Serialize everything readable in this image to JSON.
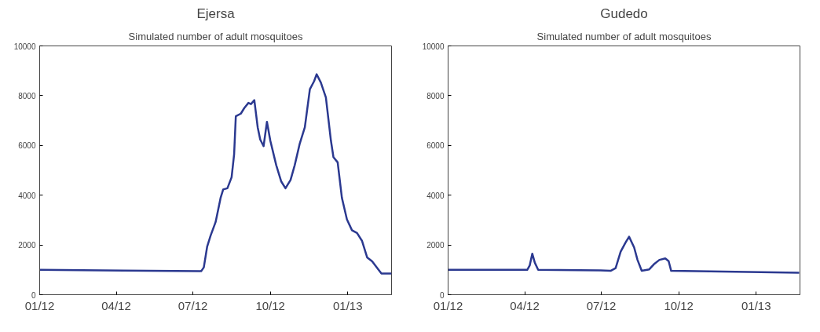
{
  "chart_data": [
    {
      "type": "line",
      "title": "Ejersa",
      "subtitle": "Simulated number of adult mosquitoes",
      "x": [
        "2012-01-01",
        "2012-04-10",
        "2012-07-11",
        "2012-07-14",
        "2012-07-18",
        "2012-07-22",
        "2012-07-28",
        "2012-08-03",
        "2012-08-06",
        "2012-08-11",
        "2012-08-16",
        "2012-08-19",
        "2012-08-21",
        "2012-08-27",
        "2012-08-31",
        "2012-09-05",
        "2012-09-08",
        "2012-09-12",
        "2012-09-16",
        "2012-09-19",
        "2012-09-23",
        "2012-09-27",
        "2012-10-01",
        "2012-10-08",
        "2012-10-14",
        "2012-10-19",
        "2012-10-25",
        "2012-10-30",
        "2012-11-05",
        "2012-11-11",
        "2012-11-17",
        "2012-11-22",
        "2012-11-25",
        "2012-11-30",
        "2012-12-06",
        "2012-12-12",
        "2012-12-15",
        "2012-12-20",
        "2012-12-25",
        "2012-12-31",
        "2013-01-06",
        "2013-01-12",
        "2013-01-18",
        "2013-01-24",
        "2013-01-30",
        "2013-02-05",
        "2013-02-10",
        "2013-02-22"
      ],
      "series": [
        {
          "color": "#2b3990",
          "values": [
            1000,
            970,
            950,
            1100,
            1940,
            2370,
            2920,
            3900,
            4230,
            4280,
            4720,
            5640,
            7170,
            7280,
            7500,
            7710,
            7660,
            7820,
            6730,
            6240,
            5970,
            6950,
            6190,
            5210,
            4550,
            4280,
            4610,
            5210,
            6080,
            6730,
            8260,
            8580,
            8860,
            8530,
            7930,
            6190,
            5530,
            5320,
            3900,
            3030,
            2590,
            2480,
            2160,
            1500,
            1340,
            1070,
            850,
            850
          ]
        }
      ],
      "xlim": [
        "2012-01-01",
        "2013-02-22"
      ],
      "xticks": [
        {
          "value": "2012-01-01",
          "label": "01/12"
        },
        {
          "value": "2012-04-01",
          "label": "04/12"
        },
        {
          "value": "2012-07-01",
          "label": "07/12"
        },
        {
          "value": "2012-10-01",
          "label": "10/12"
        },
        {
          "value": "2013-01-01",
          "label": "01/13"
        }
      ],
      "ylim": [
        0,
        10000
      ],
      "yticks": [
        0,
        2000,
        4000,
        6000,
        8000,
        10000
      ],
      "grid": false,
      "marker": "none",
      "line_style": "solid"
    },
    {
      "type": "line",
      "title": "Gudedo",
      "subtitle": "Simulated number of adult mosquitoes",
      "x": [
        "2012-01-01",
        "2012-04-04",
        "2012-04-07",
        "2012-04-10",
        "2012-04-13",
        "2012-04-17",
        "2012-06-30",
        "2012-07-12",
        "2012-07-18",
        "2012-07-24",
        "2012-07-30",
        "2012-08-03",
        "2012-08-09",
        "2012-08-13",
        "2012-08-18",
        "2012-08-27",
        "2012-09-02",
        "2012-09-08",
        "2012-09-15",
        "2012-09-19",
        "2012-09-22",
        "2012-11-07",
        "2013-02-21"
      ],
      "series": [
        {
          "color": "#2b3990",
          "values": [
            1000,
            1000,
            1180,
            1650,
            1290,
            1000,
            980,
            960,
            1070,
            1730,
            2110,
            2330,
            1900,
            1400,
            960,
            1020,
            1240,
            1400,
            1460,
            1350,
            960,
            940,
            880
          ]
        }
      ],
      "xlim": [
        "2012-01-01",
        "2013-02-22"
      ],
      "xticks": [
        {
          "value": "2012-01-01",
          "label": "01/12"
        },
        {
          "value": "2012-04-01",
          "label": "04/12"
        },
        {
          "value": "2012-07-01",
          "label": "07/12"
        },
        {
          "value": "2012-10-01",
          "label": "10/12"
        },
        {
          "value": "2013-01-01",
          "label": "01/13"
        }
      ],
      "ylim": [
        0,
        10000
      ],
      "yticks": [
        0,
        2000,
        4000,
        6000,
        8000,
        10000
      ],
      "grid": false,
      "marker": "none",
      "line_style": "solid"
    }
  ]
}
